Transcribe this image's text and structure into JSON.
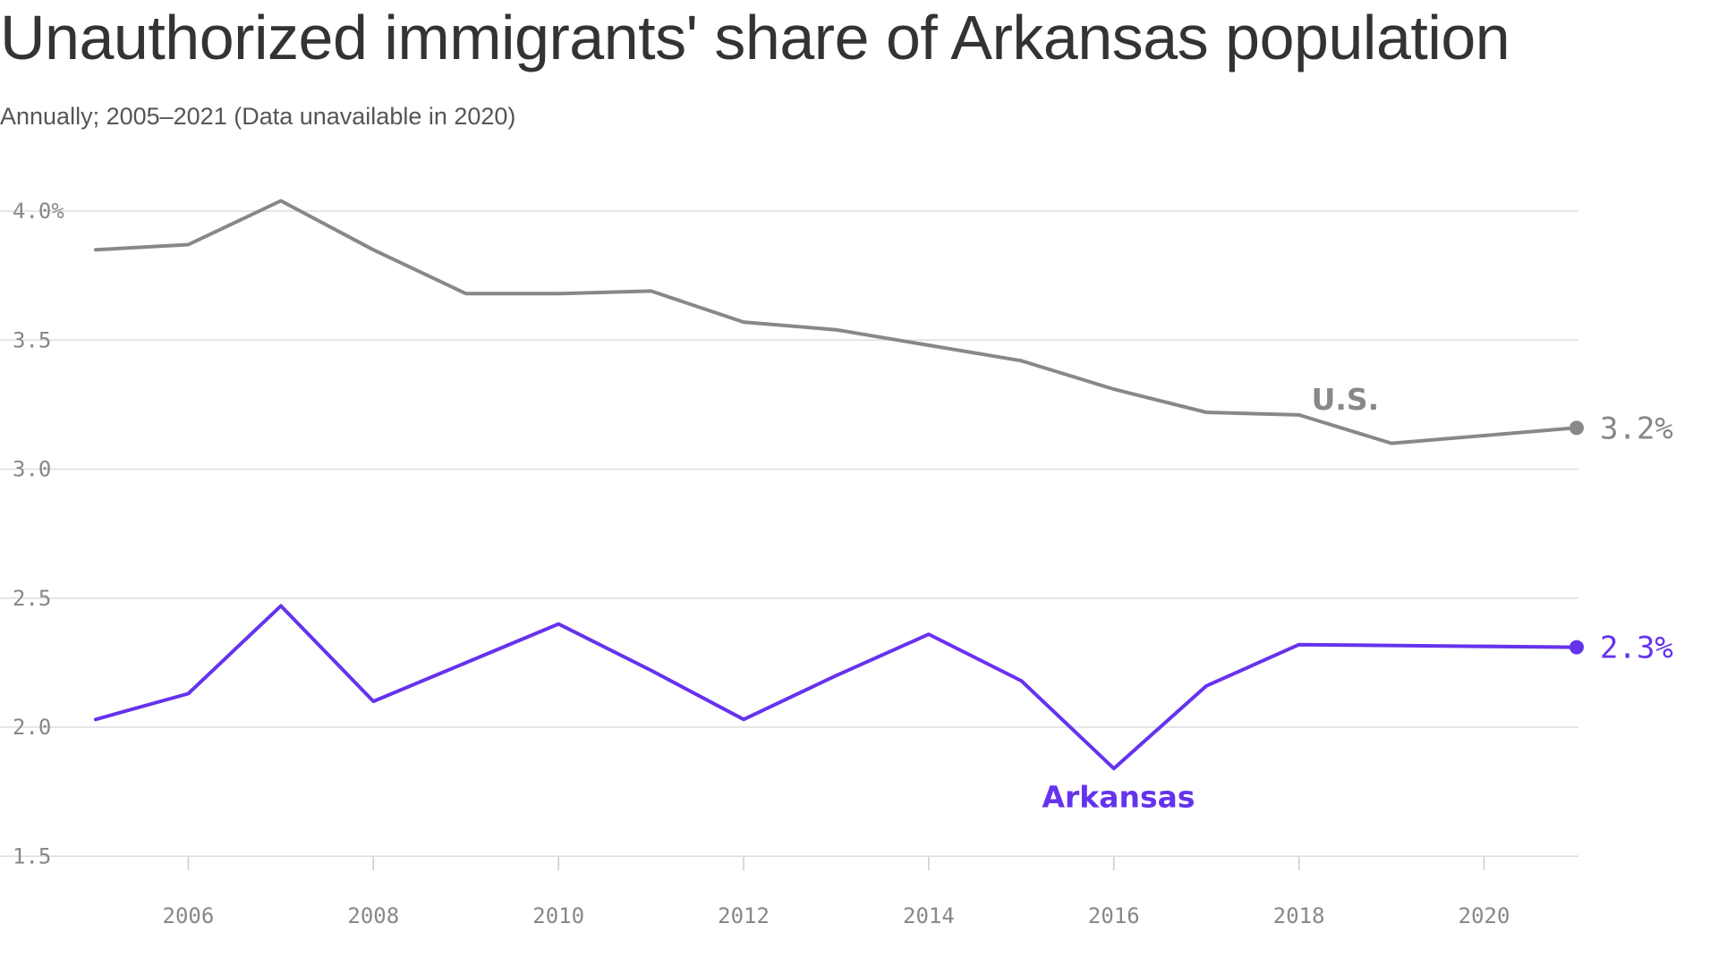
{
  "title": "Unauthorized immigrants' share of Arkansas population",
  "subtitle": "Annually; 2005–2021 (Data unavailable in 2020)",
  "chart_data": {
    "type": "line",
    "title": "Unauthorized immigrants' share of Arkansas population",
    "subtitle": "Annually; 2005–2021 (Data unavailable in 2020)",
    "xlabel": "",
    "ylabel": "",
    "xlim": [
      2005,
      2021
    ],
    "ylim": [
      1.5,
      4.2
    ],
    "x_ticks": [
      2006,
      2008,
      2010,
      2012,
      2014,
      2016,
      2018,
      2020
    ],
    "x_tick_labels": [
      "2006",
      "2008",
      "2010",
      "2012",
      "2014",
      "2016",
      "2018",
      "2020"
    ],
    "y_ticks": [
      1.5,
      2.0,
      2.5,
      3.0,
      3.5,
      4.0
    ],
    "y_tick_labels": [
      "1.5",
      "2.0",
      "2.5",
      "3.0",
      "3.5",
      "4.0%"
    ],
    "grid": "horizontal",
    "legend": "none (direct labels)",
    "series": [
      {
        "name": "U.S.",
        "color": "#888888",
        "x": [
          2005,
          2006,
          2007,
          2008,
          2009,
          2010,
          2011,
          2012,
          2013,
          2014,
          2015,
          2016,
          2017,
          2018,
          2019,
          2021
        ],
        "values": [
          3.85,
          3.87,
          4.04,
          3.85,
          3.68,
          3.68,
          3.69,
          3.57,
          3.54,
          3.48,
          3.42,
          3.31,
          3.22,
          3.21,
          3.1,
          3.16
        ],
        "end_label": "3.2%"
      },
      {
        "name": "Arkansas",
        "color": "#6533ee",
        "x": [
          2005,
          2006,
          2007,
          2008,
          2009,
          2010,
          2011,
          2012,
          2013,
          2014,
          2015,
          2016,
          2017,
          2018,
          2021
        ],
        "values": [
          2.03,
          2.13,
          2.47,
          2.1,
          2.25,
          2.4,
          2.22,
          2.03,
          2.2,
          2.36,
          2.18,
          1.84,
          2.16,
          2.32,
          2.31
        ],
        "end_label": "2.3%"
      }
    ]
  }
}
